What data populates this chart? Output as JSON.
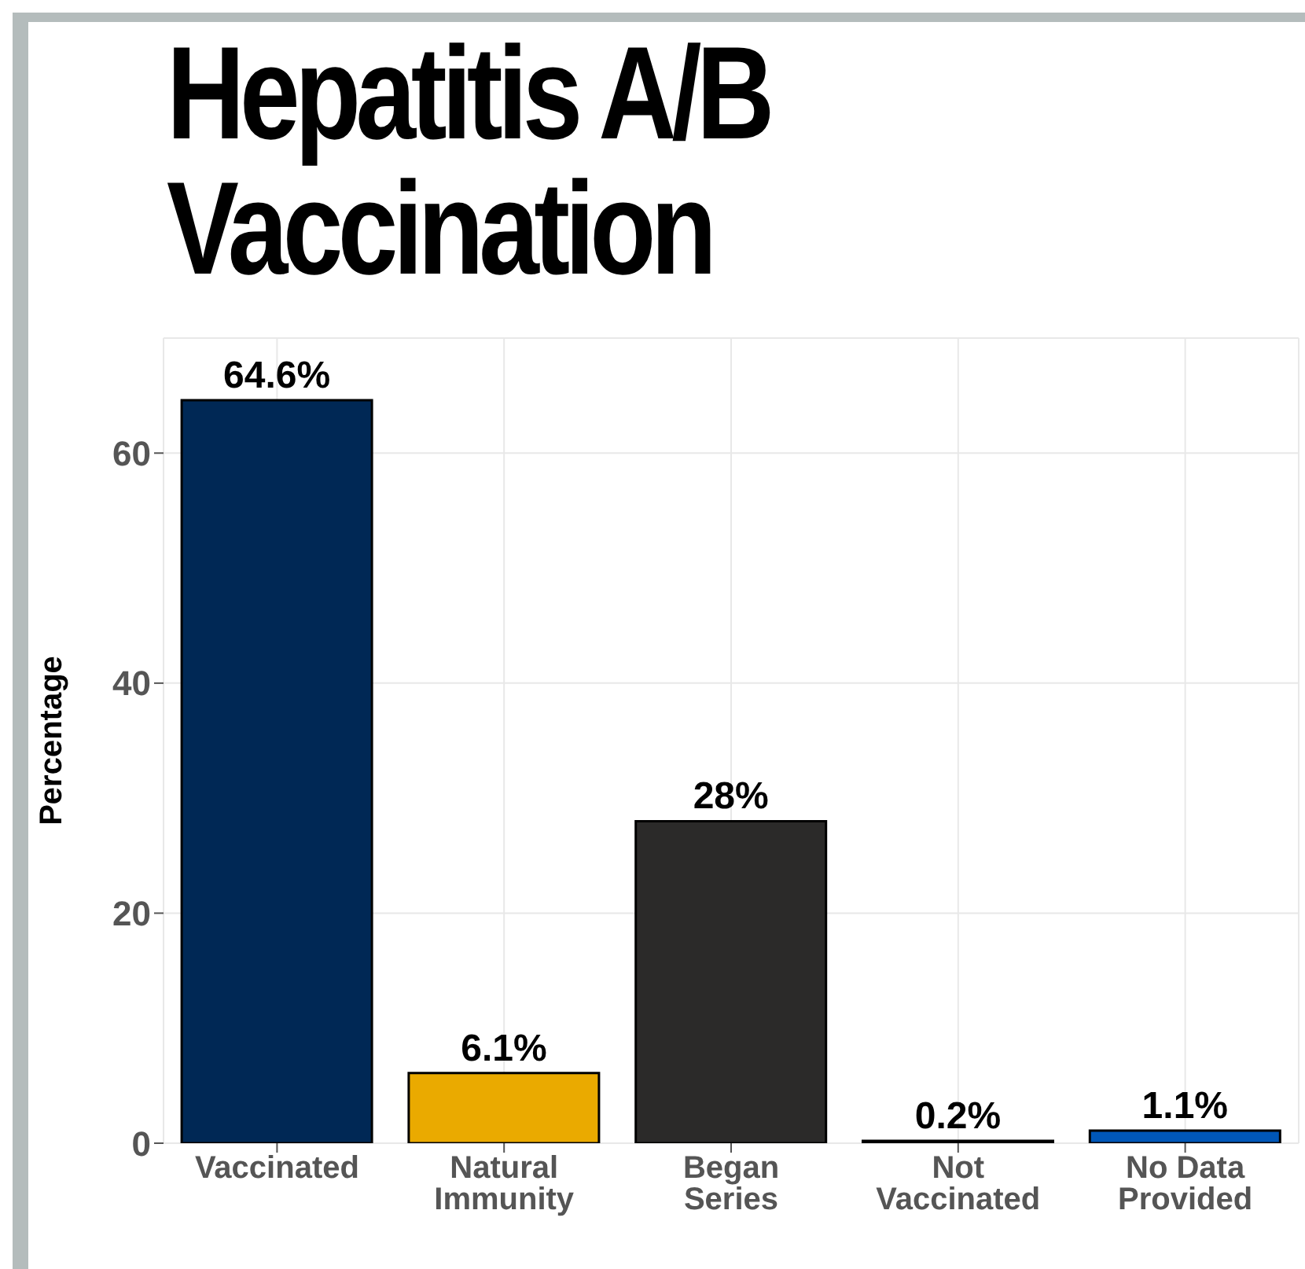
{
  "chart_data": {
    "type": "bar",
    "title": "Hepatitis A/B\nVaccination",
    "ylabel": "Percentage",
    "categories": [
      "Vaccinated",
      "Natural\nImmunity",
      "Began\nSeries",
      "Not\nVaccinated",
      "No Data\nProvided"
    ],
    "values": [
      64.6,
      6.1,
      28,
      0.2,
      1.1
    ],
    "colors": [
      "#002855",
      "#eaaa00",
      "#2b2a29",
      "#000000",
      "#0057b8"
    ],
    "value_labels": [
      "64.6%",
      "6.1%",
      "28%",
      "0.2%",
      "1.1%"
    ],
    "ylim": [
      0,
      70
    ],
    "yticks": [
      0,
      20,
      40,
      60
    ],
    "grid": true
  }
}
